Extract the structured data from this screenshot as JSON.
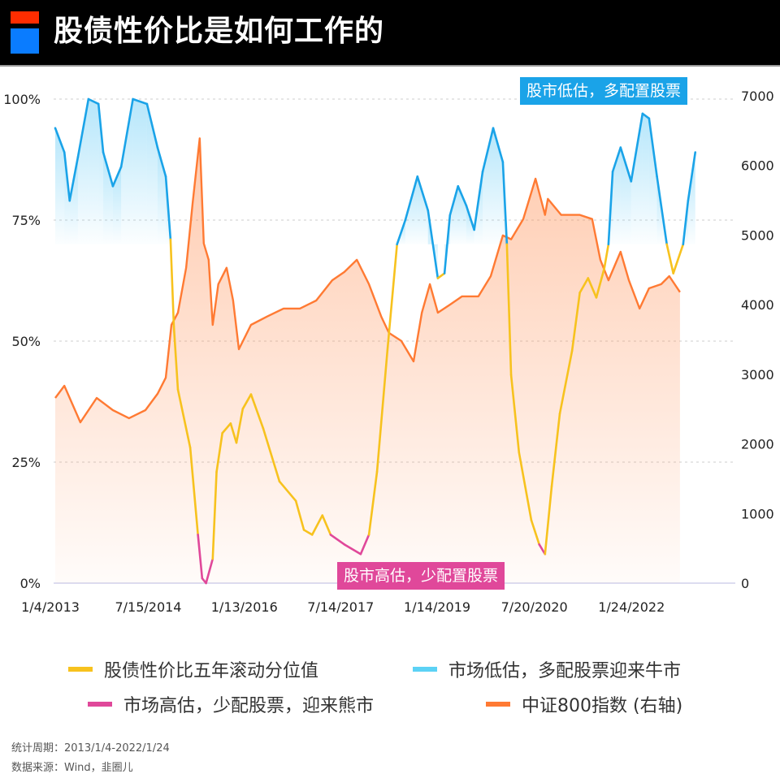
{
  "header": {
    "title": "股债性价比是如何工作的"
  },
  "chart_data": {
    "type": "line",
    "title": "股债性价比是如何工作的",
    "x_tick_labels": [
      "1/4/2013",
      "7/15/2014",
      "1/13/2016",
      "7/14/2017",
      "1/14/2019",
      "7/20/2020",
      "1/24/2022"
    ],
    "x_ticks": [
      "2013-01-04",
      "2014-07-15",
      "2016-01-13",
      "2017-07-14",
      "2019-01-14",
      "2020-07-20",
      "2022-01-24"
    ],
    "y_left": {
      "ticks": [
        0,
        25,
        50,
        75,
        100
      ],
      "tick_labels": [
        "0%",
        "25%",
        "50%",
        "75%",
        "100%"
      ],
      "range": [
        0,
        100
      ]
    },
    "y_right": {
      "ticks": [
        0,
        1000,
        2000,
        3000,
        4000,
        5000,
        6000,
        7000
      ],
      "tick_labels": [
        "0",
        "1000",
        "2000",
        "3000",
        "4000",
        "5000",
        "6000",
        "7000"
      ],
      "range": [
        0,
        7000
      ]
    },
    "grid": "horizontal dashed",
    "legend_position": "bottom",
    "thresholds": {
      "low_valuation_min_pct": 70,
      "high_valuation_max_pct": 10
    },
    "colors": {
      "percentile": "#f7c21e",
      "low_valuation": "#1aa3e8",
      "high_valuation": "#e0489a",
      "index": "#ff7a33"
    },
    "series": [
      {
        "name": "股债性价比五年滚动分位值",
        "axis": "left",
        "unit": "%",
        "points": [
          [
            "2013-01-04",
            94
          ],
          [
            "2013-02-25",
            89
          ],
          [
            "2013-03-27",
            79
          ],
          [
            "2013-05-13",
            88
          ],
          [
            "2013-07-12",
            100
          ],
          [
            "2013-09-07",
            99
          ],
          [
            "2013-10-04",
            89
          ],
          [
            "2013-11-28",
            82
          ],
          [
            "2014-01-14",
            86
          ],
          [
            "2014-03-22",
            100
          ],
          [
            "2014-06-10",
            99
          ],
          [
            "2014-08-09",
            90
          ],
          [
            "2014-09-25",
            84
          ],
          [
            "2014-10-22",
            71
          ],
          [
            "2014-11-10",
            53
          ],
          [
            "2014-12-03",
            40
          ],
          [
            "2015-02-11",
            28
          ],
          [
            "2015-03-27",
            10
          ],
          [
            "2015-04-20",
            1
          ],
          [
            "2015-05-12",
            0
          ],
          [
            "2015-06-19",
            5
          ],
          [
            "2015-07-11",
            23
          ],
          [
            "2015-08-13",
            31
          ],
          [
            "2015-09-29",
            33
          ],
          [
            "2015-11-01",
            29
          ],
          [
            "2015-12-07",
            36
          ],
          [
            "2016-01-23",
            39
          ],
          [
            "2016-04-01",
            32
          ],
          [
            "2016-07-03",
            21
          ],
          [
            "2016-10-04",
            17
          ],
          [
            "2016-11-19",
            11
          ],
          [
            "2017-01-05",
            10
          ],
          [
            "2017-03-04",
            14
          ],
          [
            "2017-04-20",
            10
          ],
          [
            "2017-07-07",
            8
          ],
          [
            "2017-10-08",
            6
          ],
          [
            "2017-11-24",
            10
          ],
          [
            "2018-01-09",
            23
          ],
          [
            "2018-03-09",
            48
          ],
          [
            "2018-05-03",
            70
          ],
          [
            "2018-06-19",
            75
          ],
          [
            "2018-08-27",
            84
          ],
          [
            "2018-10-26",
            77
          ],
          [
            "2018-12-21",
            63
          ],
          [
            "2019-01-28",
            64
          ],
          [
            "2019-02-28",
            76
          ],
          [
            "2019-04-15",
            82
          ],
          [
            "2019-06-01",
            78
          ],
          [
            "2019-07-16",
            73
          ],
          [
            "2019-09-02",
            85
          ],
          [
            "2019-11-01",
            94
          ],
          [
            "2019-12-26",
            87
          ],
          [
            "2020-01-18",
            70
          ],
          [
            "2020-02-11",
            43
          ],
          [
            "2020-03-27",
            27
          ],
          [
            "2020-06-05",
            13
          ],
          [
            "2020-07-20",
            8
          ],
          [
            "2020-08-22",
            6
          ],
          [
            "2020-09-29",
            20
          ],
          [
            "2020-11-14",
            35
          ],
          [
            "2021-01-23",
            48
          ],
          [
            "2021-03-08",
            60
          ],
          [
            "2021-04-24",
            63
          ],
          [
            "2021-06-10",
            59
          ],
          [
            "2021-07-25",
            65
          ],
          [
            "2021-08-18",
            70
          ],
          [
            "2021-09-11",
            85
          ],
          [
            "2021-10-26",
            90
          ],
          [
            "2021-12-25",
            83
          ],
          [
            "2022-02-28",
            97
          ],
          [
            "2022-04-06",
            96
          ],
          [
            "2022-05-21",
            84
          ],
          [
            "2022-07-16",
            70
          ],
          [
            "2022-08-22",
            64
          ],
          [
            "2022-10-17",
            70
          ],
          [
            "2022-11-14",
            79
          ],
          [
            "2022-12-25",
            89
          ]
        ]
      },
      {
        "name": "中证800指数 (右轴)",
        "axis": "right",
        "points": [
          [
            "2013-01-04",
            2660
          ],
          [
            "2013-02-25",
            2835
          ],
          [
            "2013-05-27",
            2310
          ],
          [
            "2013-08-28",
            2660
          ],
          [
            "2013-11-28",
            2485
          ],
          [
            "2014-02-28",
            2370
          ],
          [
            "2014-06-01",
            2485
          ],
          [
            "2014-08-09",
            2720
          ],
          [
            "2014-09-25",
            2950
          ],
          [
            "2014-10-27",
            3710
          ],
          [
            "2014-12-03",
            3885
          ],
          [
            "2015-01-19",
            4530
          ],
          [
            "2015-02-25",
            5460
          ],
          [
            "2015-04-06",
            6390
          ],
          [
            "2015-04-29",
            4880
          ],
          [
            "2015-05-27",
            4645
          ],
          [
            "2015-06-19",
            3710
          ],
          [
            "2015-07-21",
            4295
          ],
          [
            "2015-09-06",
            4530
          ],
          [
            "2015-10-13",
            4060
          ],
          [
            "2015-11-15",
            3360
          ],
          [
            "2016-01-23",
            3710
          ],
          [
            "2016-04-24",
            3830
          ],
          [
            "2016-07-26",
            3945
          ],
          [
            "2016-10-27",
            3945
          ],
          [
            "2017-01-28",
            4060
          ],
          [
            "2017-04-29",
            4350
          ],
          [
            "2017-07-07",
            4470
          ],
          [
            "2017-09-16",
            4645
          ],
          [
            "2017-11-24",
            4295
          ],
          [
            "2018-02-02",
            3830
          ],
          [
            "2018-03-18",
            3595
          ],
          [
            "2018-05-27",
            3480
          ],
          [
            "2018-08-05",
            3185
          ],
          [
            "2018-09-21",
            3885
          ],
          [
            "2018-11-06",
            4295
          ],
          [
            "2018-12-21",
            3885
          ],
          [
            "2019-02-28",
            4000
          ],
          [
            "2019-05-08",
            4120
          ],
          [
            "2019-08-09",
            4120
          ],
          [
            "2019-10-18",
            4410
          ],
          [
            "2019-12-26",
            4995
          ],
          [
            "2020-02-11",
            4940
          ],
          [
            "2020-04-20",
            5230
          ],
          [
            "2020-06-29",
            5810
          ],
          [
            "2020-08-22",
            5290
          ],
          [
            "2020-09-07",
            5520
          ],
          [
            "2020-11-22",
            5290
          ],
          [
            "2021-03-08",
            5290
          ],
          [
            "2021-05-17",
            5230
          ],
          [
            "2021-07-03",
            4645
          ],
          [
            "2021-08-18",
            4350
          ],
          [
            "2021-10-26",
            4760
          ],
          [
            "2021-12-12",
            4350
          ],
          [
            "2022-02-11",
            3945
          ],
          [
            "2022-04-06",
            4235
          ],
          [
            "2022-06-14",
            4295
          ],
          [
            "2022-07-30",
            4410
          ],
          [
            "2022-09-29",
            4180
          ]
        ]
      }
    ],
    "annotations": [
      {
        "text": "股市低估，多配置股票",
        "color": "#1aa3e8"
      },
      {
        "text": "股市高估，少配置股票",
        "color": "#e0489a"
      }
    ]
  },
  "legend": [
    {
      "label": "股债性价比五年滚动分位值",
      "color": "#f7c21e"
    },
    {
      "label": "市场低估，多配股票迎来牛市",
      "color": "#5cd2f5"
    },
    {
      "label": "市场高估，少配股票，迎来熊市",
      "color": "#e0489a"
    },
    {
      "label": "中证800指数 (右轴)",
      "color": "#ff7a33"
    }
  ],
  "footer": {
    "period": "统计周期：2013/1/4-2022/1/24",
    "source": "数据来源：Wind，韭圈儿"
  }
}
